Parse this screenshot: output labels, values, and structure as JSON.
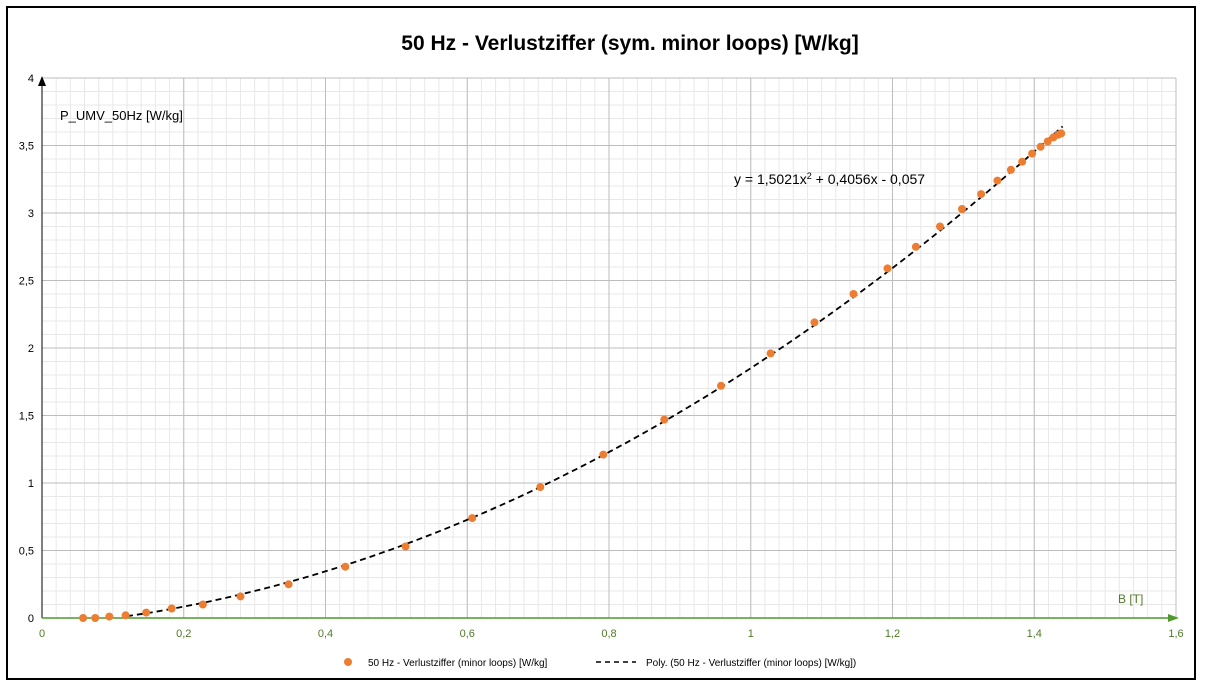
{
  "chart_data": {
    "type": "scatter",
    "title": "50 Hz - Verlustziffer (sym. minor loops) [W/kg]",
    "ylabel": "P_UMV_50Hz [W/kg]",
    "xlabel": "B [T]",
    "xlim": [
      0,
      1.6
    ],
    "ylim": [
      0,
      4
    ],
    "x_ticks": [
      "0",
      "0,2",
      "0,4",
      "0,6",
      "0,8",
      "1",
      "1,2",
      "1,4",
      "1,6"
    ],
    "y_ticks": [
      "0",
      "0,5",
      "1",
      "1,5",
      "2",
      "2,5",
      "3",
      "3,5",
      "4"
    ],
    "grid": true,
    "minor_grid": true,
    "legend_position": "bottom",
    "series": [
      {
        "name": "50 Hz - Verlustziffer (minor loops) [W/kg]",
        "type": "scatter",
        "color": "#ED7D31",
        "x": [
          0.058,
          0.075,
          0.095,
          0.118,
          0.147,
          0.183,
          0.227,
          0.28,
          0.348,
          0.428,
          0.513,
          0.607,
          0.703,
          0.792,
          0.878,
          0.958,
          1.028,
          1.09,
          1.145,
          1.193,
          1.233,
          1.267,
          1.298,
          1.325,
          1.348,
          1.367,
          1.383,
          1.397,
          1.409,
          1.419,
          1.427,
          1.434,
          1.438
        ],
        "y": [
          0.0,
          0.0,
          0.01,
          0.02,
          0.04,
          0.07,
          0.1,
          0.16,
          0.25,
          0.38,
          0.53,
          0.74,
          0.97,
          1.21,
          1.47,
          1.72,
          1.96,
          2.19,
          2.4,
          2.59,
          2.75,
          2.9,
          3.03,
          3.14,
          3.24,
          3.32,
          3.38,
          3.44,
          3.49,
          3.53,
          3.56,
          3.58,
          3.59
        ]
      },
      {
        "name": "Poly. (50 Hz - Verlustziffer (minor loops) [W/kg])",
        "type": "trendline",
        "color": "#000000",
        "coefficients": {
          "a": 1.5021,
          "b": 0.4056,
          "c": -0.057
        },
        "x_range": [
          0.12,
          1.44
        ]
      }
    ],
    "equation": "y = 1,5021x² + 0,4056x - 0,057"
  }
}
